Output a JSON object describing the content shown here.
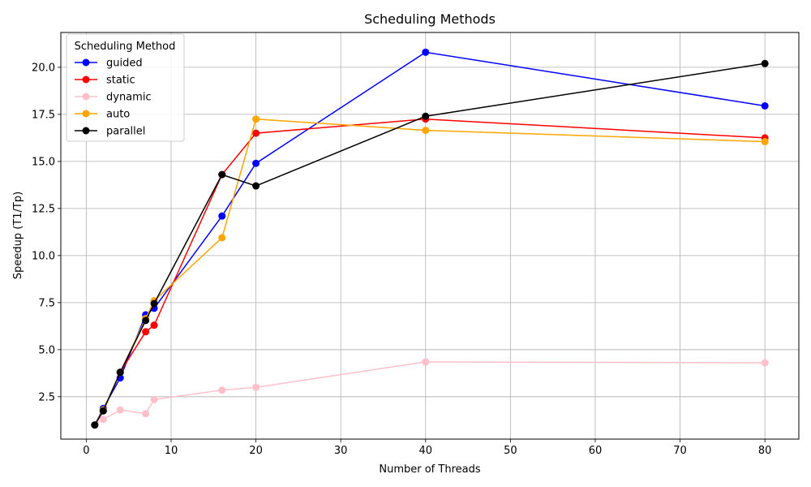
{
  "chart_data": {
    "type": "line",
    "title": "Scheduling Methods",
    "xlabel": "Number of Threads",
    "ylabel": "Speedup (T1/Tp)",
    "xlim": [
      -3,
      84
    ],
    "ylim": [
      0.25,
      21.85
    ],
    "xticks": [
      0,
      10,
      20,
      30,
      40,
      50,
      60,
      70,
      80
    ],
    "xtick_labels": [
      "0",
      "10",
      "20",
      "30",
      "40",
      "50",
      "60",
      "70",
      "80"
    ],
    "yticks": [
      2.5,
      5.0,
      7.5,
      10.0,
      12.5,
      15.0,
      17.5,
      20.0
    ],
    "ytick_labels": [
      "2.5",
      "5.0",
      "7.5",
      "10.0",
      "12.5",
      "15.0",
      "17.5",
      "20.0"
    ],
    "grid": true,
    "legend_title": "Scheduling Method",
    "legend_position": "top-left",
    "series": [
      {
        "name": "guided",
        "color": "#0000ff",
        "x": [
          1,
          2,
          4,
          7,
          8,
          16,
          20,
          40,
          80
        ],
        "y": [
          1.0,
          1.88,
          3.5,
          6.85,
          7.2,
          12.1,
          14.9,
          20.8,
          17.95
        ]
      },
      {
        "name": "static",
        "color": "#ff0000",
        "x": [
          1,
          2,
          4,
          7,
          8,
          16,
          20,
          40,
          80
        ],
        "y": [
          1.0,
          1.75,
          3.8,
          5.95,
          6.3,
          14.3,
          16.5,
          17.25,
          16.25
        ]
      },
      {
        "name": "dynamic",
        "color": "#ffc0cb",
        "x": [
          1,
          2,
          4,
          7,
          8,
          16,
          20,
          40,
          80
        ],
        "y": [
          1.0,
          1.3,
          1.8,
          1.6,
          2.35,
          2.85,
          3.0,
          4.35,
          4.3
        ]
      },
      {
        "name": "auto",
        "color": "#ffa500",
        "x": [
          1,
          2,
          4,
          7,
          8,
          16,
          20,
          40,
          80
        ],
        "y": [
          1.0,
          1.8,
          3.8,
          6.65,
          7.6,
          10.95,
          17.25,
          16.65,
          16.05
        ]
      },
      {
        "name": "parallel",
        "color": "#000000",
        "x": [
          1,
          2,
          4,
          7,
          8,
          16,
          20,
          40,
          80
        ],
        "y": [
          1.0,
          1.75,
          3.8,
          6.55,
          7.45,
          14.3,
          13.7,
          17.4,
          20.2
        ]
      }
    ]
  }
}
